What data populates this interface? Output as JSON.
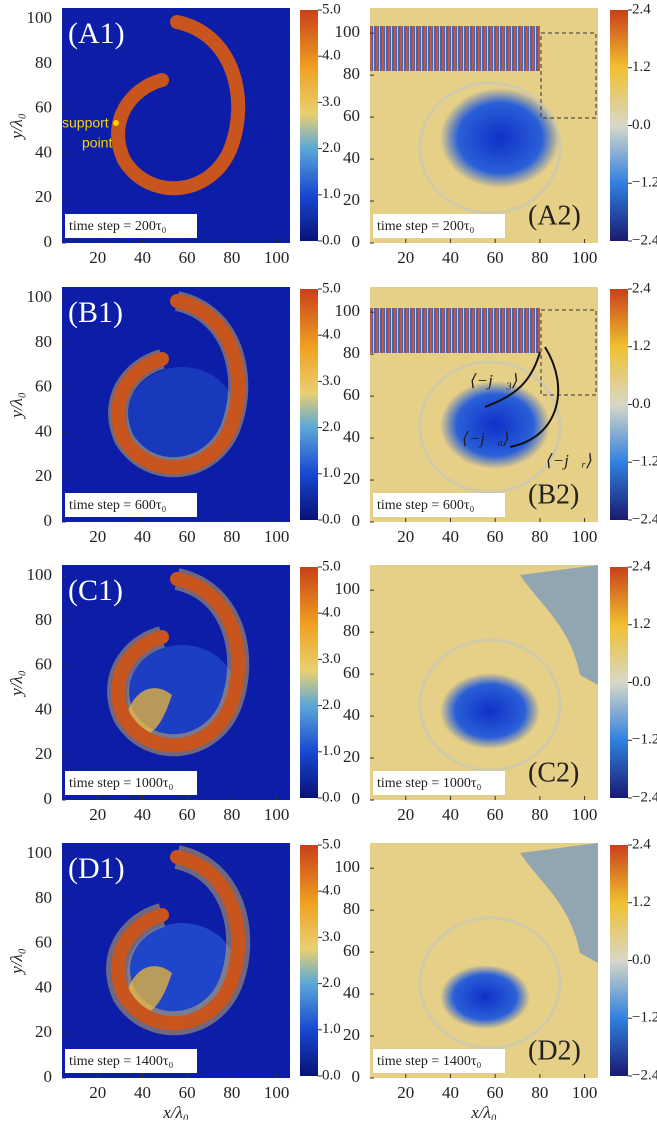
{
  "axes": {
    "xlabel": "x/λ₀",
    "ylabel": "y/λ₀",
    "xticks": [
      20,
      40,
      60,
      80,
      100
    ],
    "xlim": [
      4,
      106
    ],
    "left_yticks": [
      0,
      20,
      40,
      60,
      80,
      100
    ],
    "left_ylim": [
      0,
      105
    ],
    "right_yticks": [
      0,
      20,
      40,
      60,
      80,
      100
    ],
    "right_ylim": [
      0,
      112
    ]
  },
  "colorbars": {
    "left": {
      "lim": [
        0,
        5
      ],
      "ticks": [
        {
          "value": 5,
          "label": "5.0"
        },
        {
          "value": 4,
          "label": "4.0"
        },
        {
          "value": 3,
          "label": "3.0"
        },
        {
          "value": 2,
          "label": "2.0"
        },
        {
          "value": 1,
          "label": "1.0"
        },
        {
          "value": 0,
          "label": "0.0"
        }
      ]
    },
    "right": {
      "lim": [
        -2.4,
        2.4
      ],
      "ticks": [
        {
          "value": 2.4,
          "label": "2.4"
        },
        {
          "value": 1.2,
          "label": "1.2"
        },
        {
          "value": 0,
          "label": "0.0"
        },
        {
          "value": -1.2,
          "label": "−1.2"
        },
        {
          "value": -2.4,
          "label": "−2.4"
        }
      ]
    }
  },
  "rows": [
    {
      "left_label": "(A1)",
      "right_label": "(A2)",
      "time_step": "time step = 200τ₀",
      "annotation_lines": [
        "support",
        "point"
      ]
    },
    {
      "left_label": "(B1)",
      "right_label": "(B2)",
      "time_step": "time step = 600τ₀",
      "currents": [
        "⟨−j⃗₃⟩",
        "⟨−j⃗ₐ⟩",
        "⟨−j⃗ᵣ⟩"
      ]
    },
    {
      "left_label": "(C1)",
      "right_label": "(C2)",
      "time_step": "time step = 1000τ₀"
    },
    {
      "left_label": "(D1)",
      "right_label": "(D2)",
      "time_step": "time step = 1400τ₀"
    }
  ]
}
